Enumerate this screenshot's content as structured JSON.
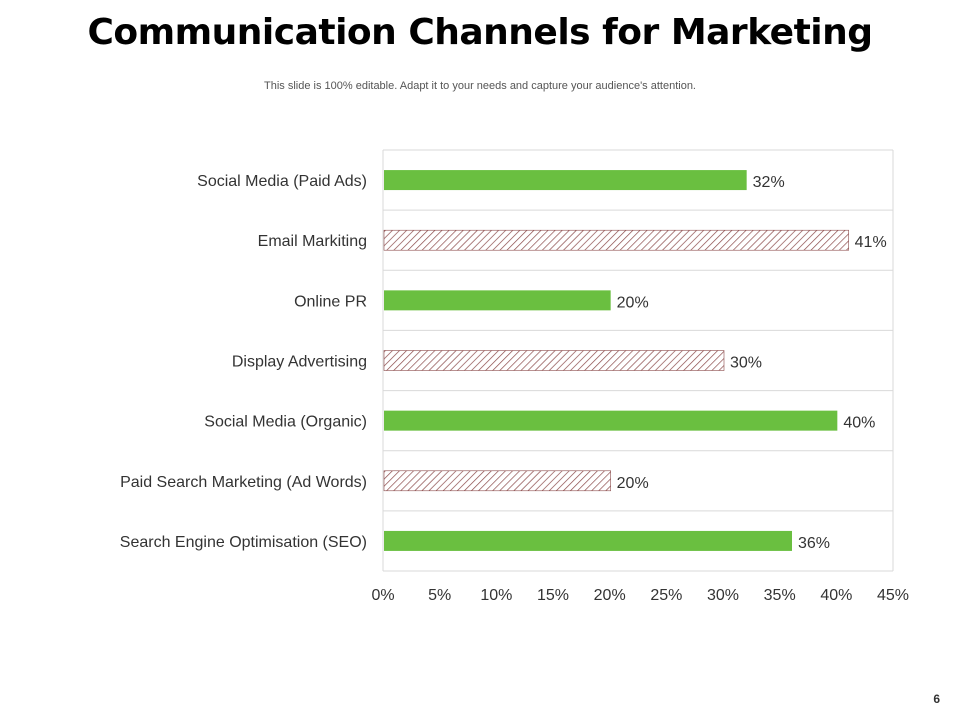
{
  "slide": {
    "title": "Communication Channels for Marketing",
    "subtitle": "This slide is 100% editable. Adapt it to your needs and capture your audience's attention.",
    "page_number": "6"
  },
  "colors": {
    "solid_bar": "#6abf40",
    "hatched_bar": "#8b4a4a",
    "grid": "#d9d9d9"
  },
  "chart_data": {
    "type": "bar",
    "orientation": "horizontal",
    "categories": [
      "Social Media (Paid Ads)",
      "Email Markiting",
      "Online PR",
      "Display Advertising",
      "Social Media (Organic)",
      "Paid Search Marketing (Ad Words)",
      "Search Engine Optimisation (SEO)"
    ],
    "values": [
      32,
      41,
      20,
      30,
      40,
      20,
      36
    ],
    "value_labels": [
      "32%",
      "41%",
      "20%",
      "30%",
      "40%",
      "20%",
      "36%"
    ],
    "bar_styles": [
      "solid",
      "hatched",
      "solid",
      "hatched",
      "solid",
      "hatched",
      "solid"
    ],
    "xlim": [
      0,
      45
    ],
    "x_ticks": [
      0,
      5,
      10,
      15,
      20,
      25,
      30,
      35,
      40,
      45
    ],
    "x_tick_labels": [
      "0%",
      "5%",
      "10%",
      "15%",
      "20%",
      "25%",
      "30%",
      "35%",
      "40%",
      "45%"
    ],
    "grid": true,
    "legend": "none"
  }
}
